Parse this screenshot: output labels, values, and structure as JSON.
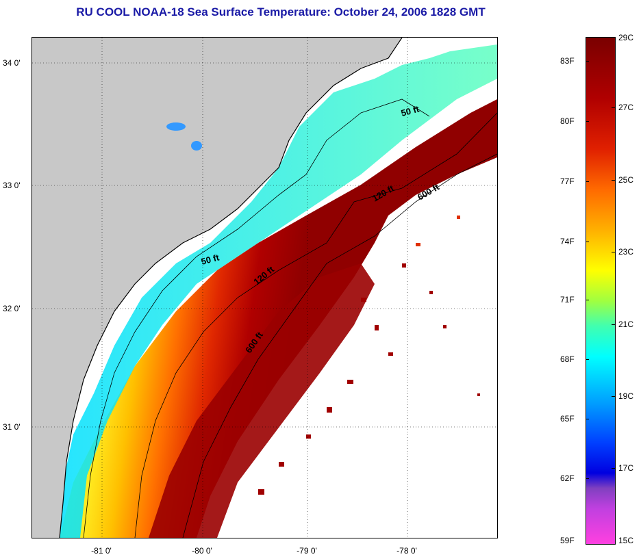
{
  "title": "RU COOL  NOAA-18  Sea Surface Temperature:  October 24, 2006 1828 GMT",
  "lat_labels": [
    {
      "label": "34 0'",
      "lat": 34
    },
    {
      "label": "33 0'",
      "lat": 33
    },
    {
      "label": "32 0'",
      "lat": 32
    },
    {
      "label": "31 0'",
      "lat": 31
    }
  ],
  "lon_labels": [
    {
      "label": "-81 0'",
      "lon": -81
    },
    {
      "label": "-80 0'",
      "lon": -80
    },
    {
      "label": "-79 0'",
      "lon": -79
    },
    {
      "label": "-78 0'",
      "lon": -78
    }
  ],
  "contour_labels": [
    {
      "text": "50 ft",
      "name": "contour-label-50ft-north"
    },
    {
      "text": "120 ft",
      "name": "contour-label-120ft-north"
    },
    {
      "text": "600 ft",
      "name": "contour-label-600ft-north"
    },
    {
      "text": "50 ft",
      "name": "contour-label-50ft-south"
    },
    {
      "text": "120 ft",
      "name": "contour-label-120ft-south"
    },
    {
      "text": "600 ft",
      "name": "contour-label-600ft-south"
    }
  ],
  "colorbar": {
    "fahrenheit": [
      {
        "label": "83F",
        "value": 83
      },
      {
        "label": "80F",
        "value": 80
      },
      {
        "label": "77F",
        "value": 77
      },
      {
        "label": "74F",
        "value": 74
      },
      {
        "label": "71F",
        "value": 71
      },
      {
        "label": "68F",
        "value": 68
      },
      {
        "label": "65F",
        "value": 65
      },
      {
        "label": "62F",
        "value": 62
      },
      {
        "label": "59F",
        "value": 59
      }
    ],
    "celsius": [
      {
        "label": "29C",
        "value": 29
      },
      {
        "label": "27C",
        "value": 27
      },
      {
        "label": "25C",
        "value": 25
      },
      {
        "label": "23C",
        "value": 23
      },
      {
        "label": "21C",
        "value": 21
      },
      {
        "label": "19C",
        "value": 19
      },
      {
        "label": "17C",
        "value": 17
      },
      {
        "label": "15C",
        "value": 15
      }
    ]
  },
  "colors": {
    "land": "#c8c8c8",
    "title": "#1a1aa6",
    "cloud": "#ffffff"
  }
}
